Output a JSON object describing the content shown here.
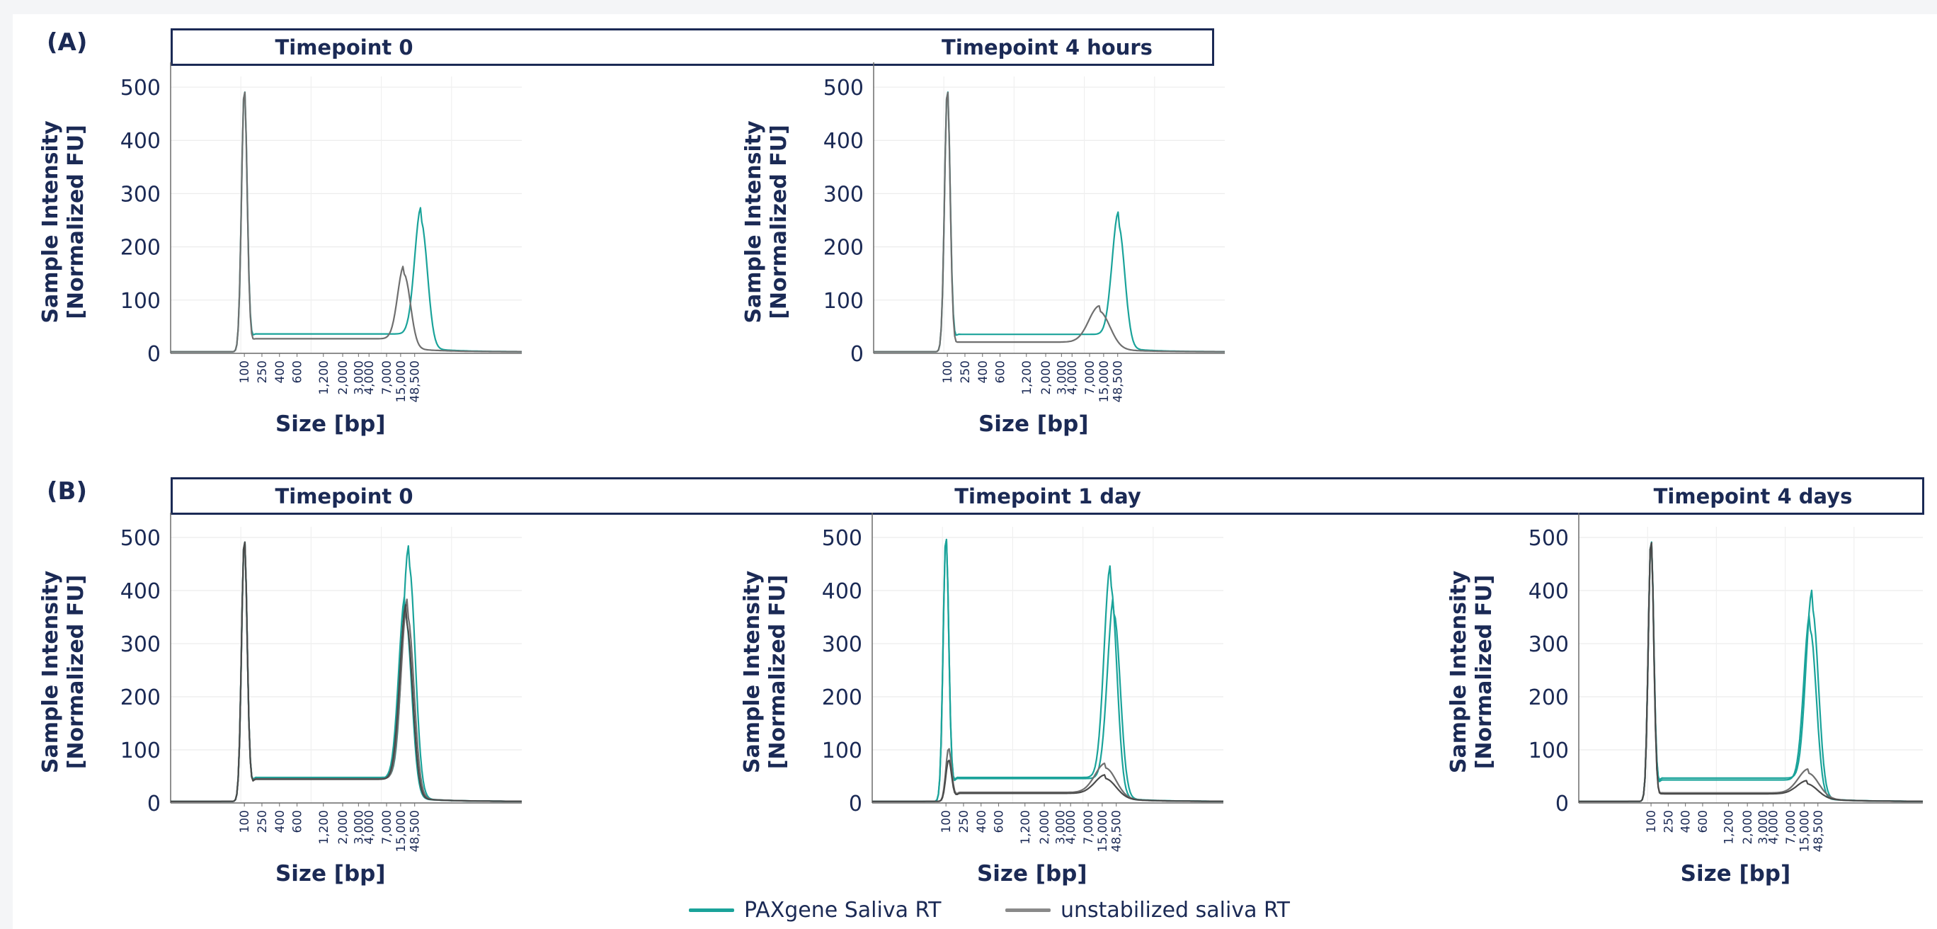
{
  "panels": [
    {
      "letter": "(A)",
      "titles": [
        "Timepoint 0",
        "Timepoint 4 hours"
      ]
    },
    {
      "letter": "(B)",
      "titles": [
        "Timepoint 0",
        "Timepoint 1 day",
        "Timepoint 4 days"
      ]
    }
  ],
  "legend": [
    {
      "label": "PAXgene Saliva RT",
      "color": "#1aa39a"
    },
    {
      "label": "unstabilized saliva RT",
      "color": "#8a8a8a"
    }
  ],
  "chart_data": [
    {
      "type": "line",
      "panel": "A",
      "title": "Timepoint 0",
      "xlabel": "Size [bp]",
      "ylabel_line1": "Sample Intensity",
      "ylabel_line2": "[Normalized FU]",
      "ylim": [
        0,
        520
      ],
      "yticks": [
        0,
        100,
        200,
        300,
        400,
        500
      ],
      "xticks": [
        "100",
        "250",
        "400",
        "600",
        "1,200",
        "2,000",
        "3,000",
        "4,000",
        "7,000",
        "15,000",
        "48,500"
      ],
      "grid": true,
      "series": [
        {
          "group": "PAXgene Saliva RT",
          "peaks": [
            [
              100,
              495
            ],
            [
              62000,
              238
            ]
          ]
        },
        {
          "group": "unstabilized saliva RT",
          "peaks": [
            [
              100,
              495
            ],
            [
              20000,
              138
            ]
          ]
        }
      ]
    },
    {
      "type": "line",
      "panel": "A",
      "title": "Timepoint 4 hours",
      "xlabel": "Size [bp]",
      "ylabel_line1": "Sample Intensity",
      "ylabel_line2": "[Normalized FU]",
      "ylim": [
        0,
        520
      ],
      "yticks": [
        0,
        100,
        200,
        300,
        400,
        500
      ],
      "xticks": [
        "100",
        "250",
        "400",
        "600",
        "1,200",
        "2,000",
        "3,000",
        "4,000",
        "7,000",
        "15,000",
        "48,500"
      ],
      "grid": true,
      "series": [
        {
          "group": "PAXgene Saliva RT",
          "peaks": [
            [
              100,
              495
            ],
            [
              50000,
              230
            ]
          ]
        },
        {
          "group": "unstabilized saliva RT",
          "peaks": [
            [
              100,
              495
            ],
            [
              12000,
              68
            ]
          ]
        }
      ]
    },
    {
      "type": "line",
      "panel": "B",
      "title": "Timepoint 0",
      "xlabel": "Size [bp]",
      "ylabel_line1": "Sample Intensity",
      "ylabel_line2": "[Normalized FU]",
      "ylim": [
        0,
        520
      ],
      "yticks": [
        0,
        100,
        200,
        300,
        400,
        500
      ],
      "xticks": [
        "100",
        "250",
        "400",
        "600",
        "1,200",
        "2,000",
        "3,000",
        "4,000",
        "7,000",
        "15,000",
        "48,500"
      ],
      "grid": true,
      "series": [
        {
          "group": "PAXgene Saliva RT",
          "peaks": [
            [
              100,
              495
            ],
            [
              30000,
              438
            ]
          ]
        },
        {
          "group": "PAXgene Saliva RT",
          "peaks": [
            [
              100,
              495
            ],
            [
              22000,
              345
            ]
          ]
        },
        {
          "group": "unstabilized saliva RT",
          "peaks": [
            [
              100,
              495
            ],
            [
              27000,
              340
            ]
          ]
        },
        {
          "group": "unstabilized saliva RT",
          "peaks": [
            [
              100,
              495
            ],
            [
              24000,
              330
            ]
          ]
        }
      ]
    },
    {
      "type": "line",
      "panel": "B",
      "title": "Timepoint 1 day",
      "xlabel": "Size [bp]",
      "ylabel_line1": "Sample Intensity",
      "ylabel_line2": "[Normalized FU]",
      "ylim": [
        0,
        520
      ],
      "yticks": [
        0,
        100,
        200,
        300,
        400,
        500
      ],
      "xticks": [
        "100",
        "250",
        "400",
        "600",
        "1,200",
        "2,000",
        "3,000",
        "4,000",
        "7,000",
        "15,000",
        "48,500"
      ],
      "grid": true,
      "series": [
        {
          "group": "PAXgene Saliva RT",
          "peaks": [
            [
              100,
              500
            ],
            [
              30000,
              400
            ]
          ]
        },
        {
          "group": "PAXgene Saliva RT",
          "peaks": [
            [
              100,
              500
            ],
            [
              40000,
              345
            ]
          ]
        },
        {
          "group": "unstabilized saliva RT",
          "peaks": [
            [
              115,
              100
            ],
            [
              20000,
              55
            ]
          ]
        },
        {
          "group": "unstabilized saliva RT",
          "peaks": [
            [
              115,
              78
            ],
            [
              20000,
              35
            ]
          ]
        }
      ]
    },
    {
      "type": "line",
      "panel": "B",
      "title": "Timepoint 4 days",
      "xlabel": "Size [bp]",
      "ylabel_line1": "Sample Intensity",
      "ylabel_line2": "[Normalized FU]",
      "ylim": [
        0,
        520
      ],
      "yticks": [
        0,
        100,
        200,
        300,
        400,
        500
      ],
      "xticks": [
        "100",
        "250",
        "400",
        "600",
        "1,200",
        "2,000",
        "3,000",
        "4,000",
        "7,000",
        "15,000",
        "48,500"
      ],
      "grid": true,
      "series": [
        {
          "group": "PAXgene Saliva RT",
          "peaks": [
            [
              100,
              495
            ],
            [
              30000,
              355
            ]
          ]
        },
        {
          "group": "PAXgene Saliva RT",
          "peaks": [
            [
              100,
              495
            ],
            [
              25000,
              315
            ]
          ]
        },
        {
          "group": "unstabilized saliva RT",
          "peaks": [
            [
              100,
              495
            ],
            [
              22000,
              45
            ]
          ]
        },
        {
          "group": "unstabilized saliva RT",
          "peaks": [
            [
              100,
              495
            ],
            [
              20000,
              25
            ]
          ]
        }
      ]
    }
  ]
}
